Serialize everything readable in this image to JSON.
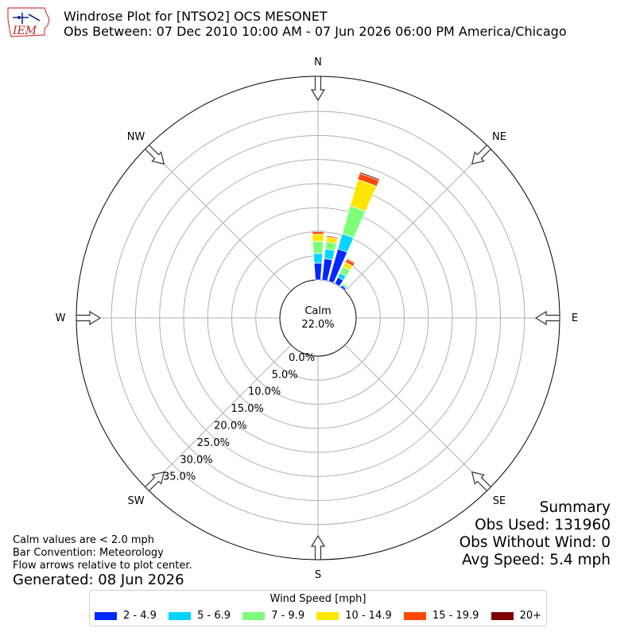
{
  "header": {
    "logo_text": "IEM",
    "logo_icon": "iowa-state-outline-logo",
    "title": "Windrose Plot for [NTSO2] OCS MESONET",
    "subtitle": "Obs Between: 07 Dec 2010 10:00 AM - 07 Jun 2026 06:00 PM America/Chicago"
  },
  "notes": {
    "line1": "Calm values are < 2.0 mph",
    "line2": "Bar Convention: Meteorology",
    "line3": "Flow arrows relative to plot center.",
    "generated": "Generated: 08 Jun 2026"
  },
  "summary": {
    "heading": "Summary",
    "obs_used": "Obs Used: 131960",
    "obs_without_wind": "Obs Without Wind: 0",
    "avg_speed": "Avg Speed: 5.4 mph"
  },
  "legend": {
    "title": "Wind Speed [mph]",
    "items": [
      {
        "label": "2 - 4.9",
        "color": "#0028ff"
      },
      {
        "label": "5 - 6.9",
        "color": "#00d4ff"
      },
      {
        "label": "7 - 9.9",
        "color": "#7dff7a"
      },
      {
        "label": "10 - 14.9",
        "color": "#ffe600"
      },
      {
        "label": "15 - 19.9",
        "color": "#ff4600"
      },
      {
        "label": "20+",
        "color": "#800000"
      }
    ]
  },
  "chart_data": {
    "type": "windrose",
    "calm": {
      "label": "Calm",
      "value": "22.0%"
    },
    "directions": [
      "N",
      "NE",
      "E",
      "SE",
      "S",
      "SW",
      "W",
      "NW"
    ],
    "radial_ticks": [
      "0.0%",
      "5.0%",
      "10.0%",
      "15.0%",
      "20.0%",
      "25.0%",
      "30.0%",
      "35.0%"
    ],
    "radial_max": 38,
    "series_colors": [
      "#0028ff",
      "#00d4ff",
      "#7dff7a",
      "#ffe600",
      "#ff4600",
      "#800000"
    ],
    "bars": [
      {
        "direction_deg": 0,
        "segments": [
          3.5,
          2.0,
          2.5,
          1.5,
          0.5,
          0.2
        ]
      },
      {
        "direction_deg": 10,
        "segments": [
          4.5,
          2.0,
          1.5,
          1.0,
          0.3,
          0.1
        ]
      },
      {
        "direction_deg": 20,
        "segments": [
          7.0,
          3.3,
          6.0,
          5.7,
          1.3,
          0.3
        ]
      },
      {
        "direction_deg": 30,
        "segments": [
          1.5,
          1.0,
          1.5,
          1.0,
          0.7,
          0.2
        ]
      },
      {
        "direction_deg": 40,
        "segments": [
          0.5,
          0.3,
          0.3,
          0.2,
          0.1,
          0.0
        ]
      }
    ]
  }
}
